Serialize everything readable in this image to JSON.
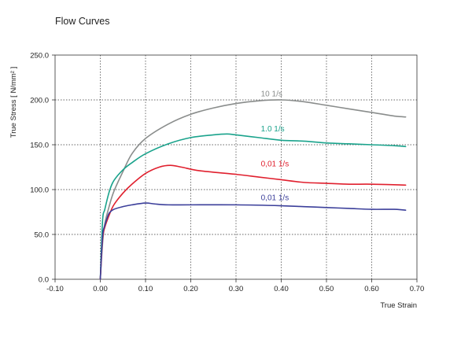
{
  "chart_data": {
    "type": "line",
    "title": "Flow Curves",
    "xlabel": "True Strain",
    "ylabel": "True Stress [ N/mm² ]",
    "xlim": [
      -0.1,
      0.7
    ],
    "ylim": [
      0,
      250
    ],
    "xticks": [
      "-0.10",
      "0.00",
      "0.10",
      "0.20",
      "0.30",
      "0.40",
      "0.50",
      "0.60",
      "0.70"
    ],
    "yticks": [
      "0.0",
      "50.0",
      "100.0",
      "150.0",
      "200.0",
      "250.0"
    ],
    "grid": true,
    "series": [
      {
        "name": "10  1/s",
        "color": "#8a8d8c",
        "x": [
          0.0,
          0.005,
          0.01,
          0.02,
          0.03,
          0.05,
          0.07,
          0.1,
          0.15,
          0.2,
          0.25,
          0.3,
          0.35,
          0.4,
          0.45,
          0.5,
          0.55,
          0.6,
          0.65,
          0.675
        ],
        "y": [
          0,
          40,
          62,
          82,
          98,
          120,
          140,
          157,
          173,
          184,
          191,
          196,
          199,
          200,
          198,
          194,
          190,
          186,
          182,
          181
        ]
      },
      {
        "name": "1.0  1/s",
        "color": "#1aa38c",
        "x": [
          0.0,
          0.005,
          0.01,
          0.02,
          0.03,
          0.05,
          0.07,
          0.1,
          0.15,
          0.2,
          0.25,
          0.28,
          0.3,
          0.35,
          0.4,
          0.45,
          0.5,
          0.55,
          0.6,
          0.65,
          0.675
        ],
        "y": [
          0,
          65,
          78,
          98,
          110,
          122,
          130,
          140,
          151,
          158,
          161,
          162,
          161,
          158,
          155,
          154,
          152,
          151,
          150,
          149,
          148
        ]
      },
      {
        "name": "0,01  1/s",
        "color": "#e0202e",
        "x": [
          0.0,
          0.005,
          0.01,
          0.02,
          0.03,
          0.05,
          0.07,
          0.1,
          0.13,
          0.155,
          0.18,
          0.22,
          0.3,
          0.35,
          0.4,
          0.45,
          0.5,
          0.55,
          0.6,
          0.675
        ],
        "y": [
          0,
          45,
          58,
          72,
          83,
          96,
          106,
          118,
          125,
          127,
          125,
          121,
          117,
          114,
          111,
          108,
          107,
          106,
          106,
          105
        ]
      },
      {
        "name": "0,01  1/s",
        "color": "#3b3f9a",
        "x": [
          0.0,
          0.005,
          0.01,
          0.015,
          0.02,
          0.03,
          0.05,
          0.07,
          0.1,
          0.12,
          0.15,
          0.2,
          0.3,
          0.4,
          0.45,
          0.5,
          0.55,
          0.6,
          0.65,
          0.675
        ],
        "y": [
          0,
          48,
          60,
          68,
          74,
          78,
          81,
          83,
          85,
          84,
          83,
          83,
          83,
          82,
          81,
          80,
          79,
          78,
          78,
          77
        ]
      }
    ],
    "series_label_positions": [
      {
        "x": 0.355,
        "y": 204
      },
      {
        "x": 0.355,
        "y": 165
      },
      {
        "x": 0.355,
        "y": 126
      },
      {
        "x": 0.355,
        "y": 88
      }
    ]
  }
}
